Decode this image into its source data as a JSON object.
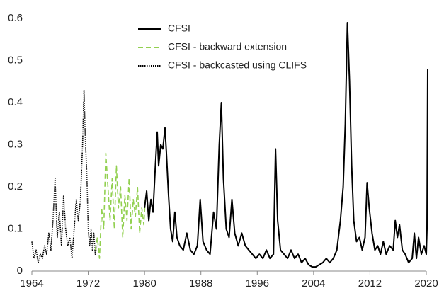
{
  "chart_data": {
    "type": "line",
    "series": [
      {
        "name": "CFSI",
        "color": "#000000",
        "dash": "solid",
        "x": [
          1980.0,
          1980.3,
          1980.6,
          1980.9,
          1981.2,
          1981.5,
          1981.8,
          1982.0,
          1982.3,
          1982.6,
          1982.9,
          1983.1,
          1983.4,
          1983.7,
          1984.0,
          1984.3,
          1984.6,
          1985.0,
          1985.5,
          1986.0,
          1986.5,
          1987.0,
          1987.5,
          1987.9,
          1988.3,
          1988.8,
          1989.3,
          1989.8,
          1990.2,
          1990.6,
          1990.9,
          1991.2,
          1991.6,
          1992.0,
          1992.4,
          1992.8,
          1993.3,
          1993.8,
          1994.3,
          1994.8,
          1995.3,
          1995.8,
          1996.3,
          1996.8,
          1997.3,
          1997.8,
          1998.3,
          1998.6,
          1998.9,
          1999.3,
          1999.8,
          2000.3,
          2000.8,
          2001.3,
          2001.8,
          2002.3,
          2002.8,
          2003.3,
          2003.8,
          2004.3,
          2004.8,
          2005.3,
          2005.8,
          2006.3,
          2006.8,
          2007.3,
          2007.8,
          2008.2,
          2008.5,
          2008.8,
          2009.1,
          2009.4,
          2009.7,
          2010.1,
          2010.5,
          2010.9,
          2011.3,
          2011.6,
          2011.9,
          2012.3,
          2012.7,
          2013.1,
          2013.5,
          2013.9,
          2014.3,
          2014.8,
          2015.3,
          2015.6,
          2015.9,
          2016.2,
          2016.6,
          2017.0,
          2017.5,
          2018.0,
          2018.3,
          2018.6,
          2018.9,
          2019.3,
          2019.7,
          2020.0,
          2020.1,
          2020.2
        ],
        "values": [
          0.15,
          0.19,
          0.12,
          0.17,
          0.14,
          0.24,
          0.33,
          0.25,
          0.3,
          0.29,
          0.34,
          0.28,
          0.18,
          0.1,
          0.07,
          0.14,
          0.08,
          0.06,
          0.05,
          0.09,
          0.05,
          0.04,
          0.06,
          0.17,
          0.07,
          0.05,
          0.04,
          0.14,
          0.1,
          0.3,
          0.4,
          0.22,
          0.1,
          0.08,
          0.17,
          0.09,
          0.06,
          0.09,
          0.06,
          0.05,
          0.04,
          0.03,
          0.04,
          0.03,
          0.05,
          0.03,
          0.04,
          0.29,
          0.12,
          0.05,
          0.04,
          0.03,
          0.05,
          0.03,
          0.04,
          0.02,
          0.03,
          0.015,
          0.01,
          0.01,
          0.015,
          0.02,
          0.03,
          0.02,
          0.03,
          0.05,
          0.12,
          0.2,
          0.35,
          0.59,
          0.45,
          0.25,
          0.12,
          0.07,
          0.08,
          0.05,
          0.08,
          0.21,
          0.15,
          0.09,
          0.05,
          0.06,
          0.04,
          0.07,
          0.04,
          0.06,
          0.05,
          0.12,
          0.08,
          0.11,
          0.05,
          0.04,
          0.02,
          0.03,
          0.09,
          0.03,
          0.08,
          0.04,
          0.06,
          0.04,
          0.1,
          0.48
        ]
      },
      {
        "name": "CFSI - backward extension",
        "color": "#92d050",
        "dash": "dashed",
        "x": [
          1973.0,
          1973.3,
          1973.6,
          1973.9,
          1974.2,
          1974.5,
          1974.8,
          1975.1,
          1975.4,
          1975.7,
          1976.0,
          1976.3,
          1976.6,
          1976.9,
          1977.2,
          1977.5,
          1977.8,
          1978.1,
          1978.4,
          1978.7,
          1979.0,
          1979.3,
          1979.6,
          1979.9,
          1980.1
        ],
        "values": [
          0.05,
          0.08,
          0.03,
          0.15,
          0.1,
          0.28,
          0.2,
          0.12,
          0.22,
          0.1,
          0.25,
          0.15,
          0.2,
          0.08,
          0.18,
          0.12,
          0.22,
          0.1,
          0.17,
          0.13,
          0.2,
          0.09,
          0.15,
          0.11,
          0.17
        ]
      },
      {
        "name": "CFSI - backcasted using CLIFS",
        "color": "#000000",
        "dash": "dotted",
        "x": [
          1964.0,
          1964.3,
          1964.6,
          1964.9,
          1965.2,
          1965.5,
          1965.8,
          1966.1,
          1966.4,
          1966.7,
          1967.0,
          1967.3,
          1967.6,
          1967.9,
          1968.2,
          1968.5,
          1968.8,
          1969.1,
          1969.4,
          1969.7,
          1970.0,
          1970.3,
          1970.6,
          1970.9,
          1971.2,
          1971.4,
          1971.6,
          1971.8,
          1972.0,
          1972.2,
          1972.4,
          1972.6,
          1972.8,
          1973.0,
          1973.2
        ],
        "values": [
          0.07,
          0.03,
          0.05,
          0.02,
          0.04,
          0.03,
          0.06,
          0.04,
          0.09,
          0.05,
          0.12,
          0.22,
          0.08,
          0.14,
          0.06,
          0.18,
          0.1,
          0.06,
          0.08,
          0.03,
          0.1,
          0.17,
          0.12,
          0.17,
          0.3,
          0.43,
          0.31,
          0.23,
          0.1,
          0.06,
          0.1,
          0.05,
          0.09,
          0.04,
          0.06
        ]
      }
    ],
    "xlim": [
      1964,
      2020
    ],
    "xticks": [
      1964,
      1972,
      1980,
      1988,
      1996,
      2004,
      2012,
      2020
    ],
    "ylim": [
      0,
      0.6
    ],
    "yticks": [
      0,
      0.1,
      0.2,
      0.3,
      0.4,
      0.5,
      0.6
    ],
    "grid": false,
    "legend": "upper center"
  }
}
